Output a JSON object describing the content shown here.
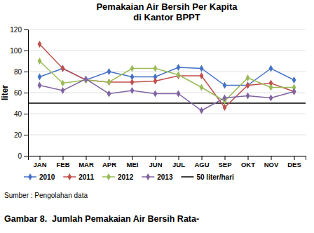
{
  "chart_data": {
    "type": "line",
    "title": "Pemakaian Air Bersih Per Kapita\ndi Kantor BPPT",
    "ylabel": "liter",
    "categories": [
      "JAN",
      "FEB",
      "MAR",
      "APR",
      "MEI",
      "JUN",
      "JUL",
      "AGU",
      "SEP",
      "OKT",
      "NOV",
      "DES"
    ],
    "series": [
      {
        "name": "2010",
        "color": "#4472C4",
        "marker": "diamond",
        "values": [
          75,
          83,
          72,
          80,
          75,
          75,
          84,
          83,
          67,
          67,
          83,
          72
        ]
      },
      {
        "name": "2011",
        "color": "#C0504D",
        "marker": "diamond",
        "values": [
          106,
          83,
          72,
          70,
          70,
          71,
          76,
          76,
          46,
          67,
          69,
          61
        ]
      },
      {
        "name": "2012",
        "color": "#9BBB59",
        "marker": "diamond",
        "values": [
          90,
          69,
          72,
          70,
          83,
          83,
          77,
          65,
          52,
          74,
          65,
          65
        ]
      },
      {
        "name": "2013",
        "color": "#8064A2",
        "marker": "diamond",
        "values": [
          67,
          62,
          73,
          59,
          62,
          59,
          59,
          43,
          55,
          57,
          55,
          61
        ]
      }
    ],
    "reference_line": {
      "name": "50 liter/hari",
      "value": 50,
      "color": "#000000"
    },
    "ylim": [
      0,
      120
    ],
    "yticks": [
      0,
      20,
      40,
      60,
      80,
      100,
      120
    ],
    "grid": true,
    "legend": "bottom",
    "source": "Sumber : Pengolahan data",
    "caption": "Gambar 8.  Jumlah Pemakaian Air Bersih Rata-"
  }
}
